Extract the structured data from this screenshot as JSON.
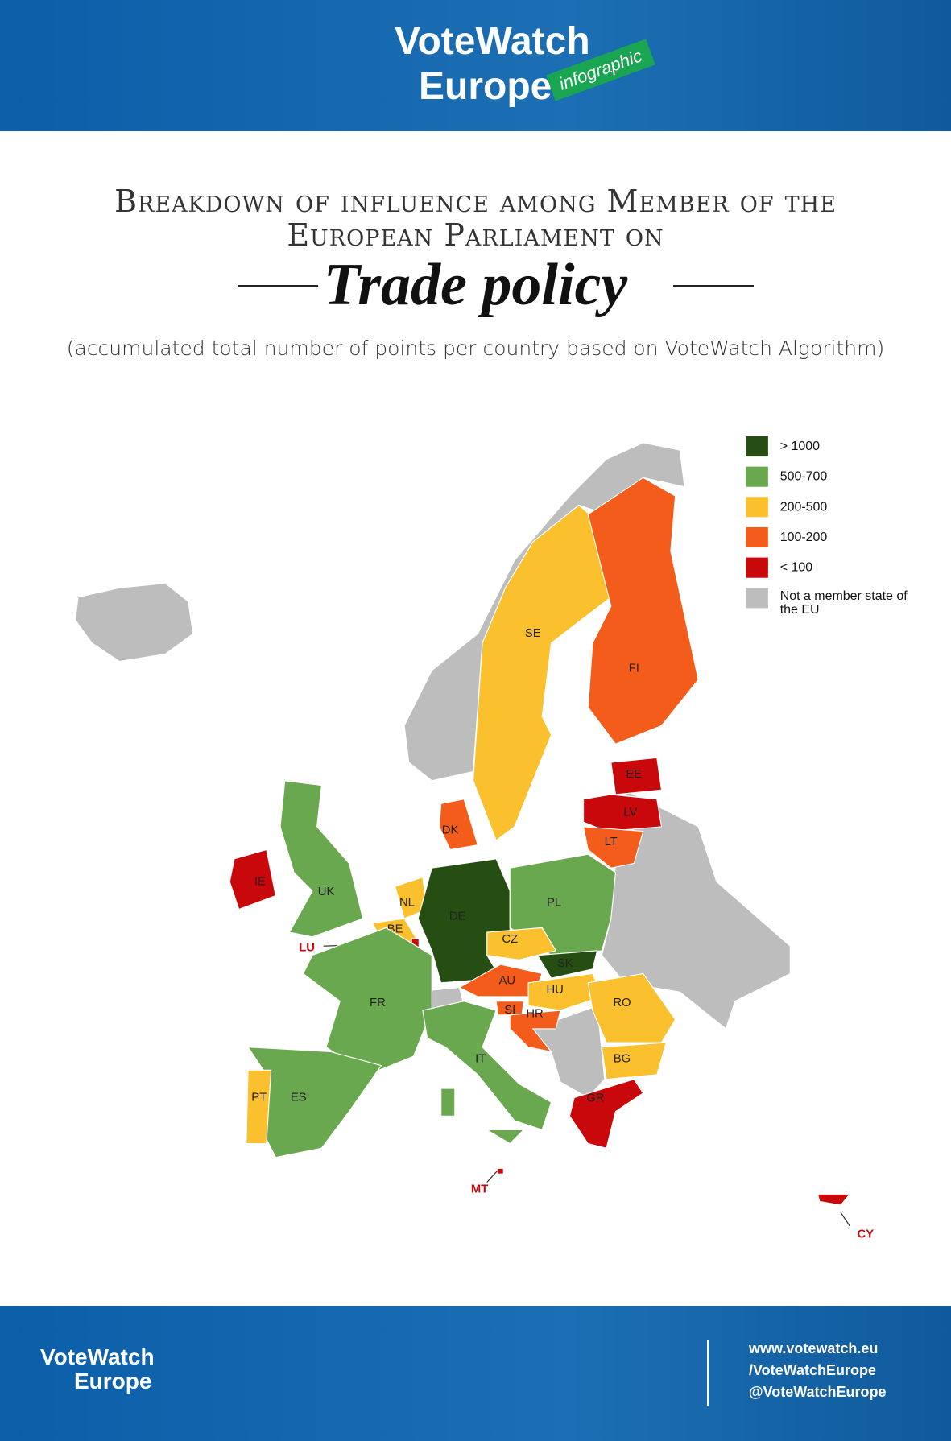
{
  "header": {
    "logo_line1": "VoteWatch",
    "logo_line2": "Europe",
    "badge": "infographic"
  },
  "title": {
    "line1": "Breakdown of influence among Member of the",
    "line2": "European Parliament on",
    "topic": "Trade policy",
    "subtitle": "(accumulated total number of points per country based on VoteWatch Algorithm)"
  },
  "legend": [
    {
      "label": "> 1000",
      "color": "#264d12"
    },
    {
      "label": "500-700",
      "color": "#6aa84f"
    },
    {
      "label": "200-500",
      "color": "#fbc02d"
    },
    {
      "label": "100-200",
      "color": "#f35c1a"
    },
    {
      "label": "< 100",
      "color": "#c8080a"
    },
    {
      "label": "Not a member state of the EU",
      "color": "#bdbdbd"
    }
  ],
  "countries": [
    {
      "code": "SE",
      "color": "#fbc02d"
    },
    {
      "code": "FI",
      "color": "#f35c1a"
    },
    {
      "code": "EE",
      "color": "#c8080a"
    },
    {
      "code": "LV",
      "color": "#c8080a"
    },
    {
      "code": "LT",
      "color": "#f35c1a"
    },
    {
      "code": "DK",
      "color": "#f35c1a"
    },
    {
      "code": "UK",
      "color": "#6aa84f"
    },
    {
      "code": "IE",
      "color": "#c8080a"
    },
    {
      "code": "NL",
      "color": "#fbc02d"
    },
    {
      "code": "BE",
      "color": "#fbc02d"
    },
    {
      "code": "LU",
      "color": "#c8080a"
    },
    {
      "code": "DE",
      "color": "#264d12"
    },
    {
      "code": "PL",
      "color": "#6aa84f"
    },
    {
      "code": "CZ",
      "color": "#fbc02d"
    },
    {
      "code": "SK",
      "color": "#264d12"
    },
    {
      "code": "AU",
      "color": "#f35c1a"
    },
    {
      "code": "HU",
      "color": "#fbc02d"
    },
    {
      "code": "RO",
      "color": "#fbc02d"
    },
    {
      "code": "BG",
      "color": "#fbc02d"
    },
    {
      "code": "SI",
      "color": "#f35c1a"
    },
    {
      "code": "HR",
      "color": "#f35c1a"
    },
    {
      "code": "GR",
      "color": "#c8080a"
    },
    {
      "code": "FR",
      "color": "#6aa84f"
    },
    {
      "code": "IT",
      "color": "#6aa84f"
    },
    {
      "code": "ES",
      "color": "#6aa84f"
    },
    {
      "code": "PT",
      "color": "#fbc02d"
    },
    {
      "code": "MT",
      "color": "#c8080a"
    },
    {
      "code": "CY",
      "color": "#c8080a"
    }
  ],
  "footer": {
    "logo_line1": "VoteWatch",
    "logo_line2": "Europe",
    "website": "www.votewatch.eu",
    "facebook": "/VoteWatchEurope",
    "twitter": "@VoteWatchEurope"
  }
}
